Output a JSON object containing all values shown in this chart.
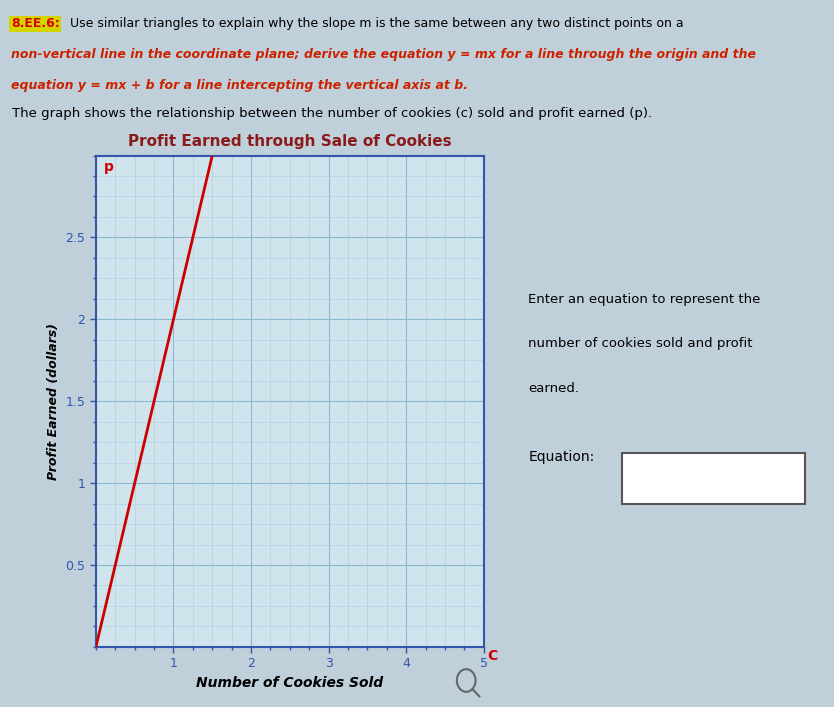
{
  "header_label": "8.EE.6:",
  "header_text1": " Use similar triangles to explain why the slope m is the same between any two distinct points on a",
  "header_text2": "non-vertical line in the coordinate plane; derive the equation y = mx for a line through the origin and the",
  "header_text3": "equation y = mx + b for a line intercepting the vertical axis at b.",
  "graph_description": "The graph shows the relationship between the number of cookies (c) sold and profit earned (p).",
  "chart_title": "Profit Earned through Sale of Cookies",
  "xlabel": "Number of Cookies Sold",
  "ylabel": "Profit Earned (dollars)",
  "yaxis_label_p": "p",
  "xaxis_label_c": "C",
  "xlim": [
    0,
    5
  ],
  "ylim": [
    0,
    3.0
  ],
  "xticks": [
    1,
    2,
    3,
    4,
    5
  ],
  "yticks": [
    0.5,
    1.0,
    1.5,
    2.0,
    2.5
  ],
  "ytick_labels": [
    "0.5",
    "1",
    "1.5",
    "2",
    "2.5"
  ],
  "xtick_labels": [
    "1",
    "2",
    "3",
    "4",
    "5"
  ],
  "line_x": [
    0,
    1.5
  ],
  "line_y": [
    0,
    3.0
  ],
  "line_color": "#cc0000",
  "line_width": 2.0,
  "grid_minor_color": "#b0d4e0",
  "grid_major_color": "#8ab8cc",
  "axis_color": "#3355aa",
  "tick_color": "#3355aa",
  "bg_color": "#c8d8e0",
  "plot_bg_color": "#d0e4ee",
  "header_bg": "#d4d400",
  "header_border": "#999900",
  "title_color": "#8b1a1a",
  "right_text1": "Enter an equation to represent the",
  "right_text2": "number of cookies sold and profit",
  "right_text3": "earned.",
  "equation_label": "Equation:",
  "fig_bg": "#c0d0da"
}
